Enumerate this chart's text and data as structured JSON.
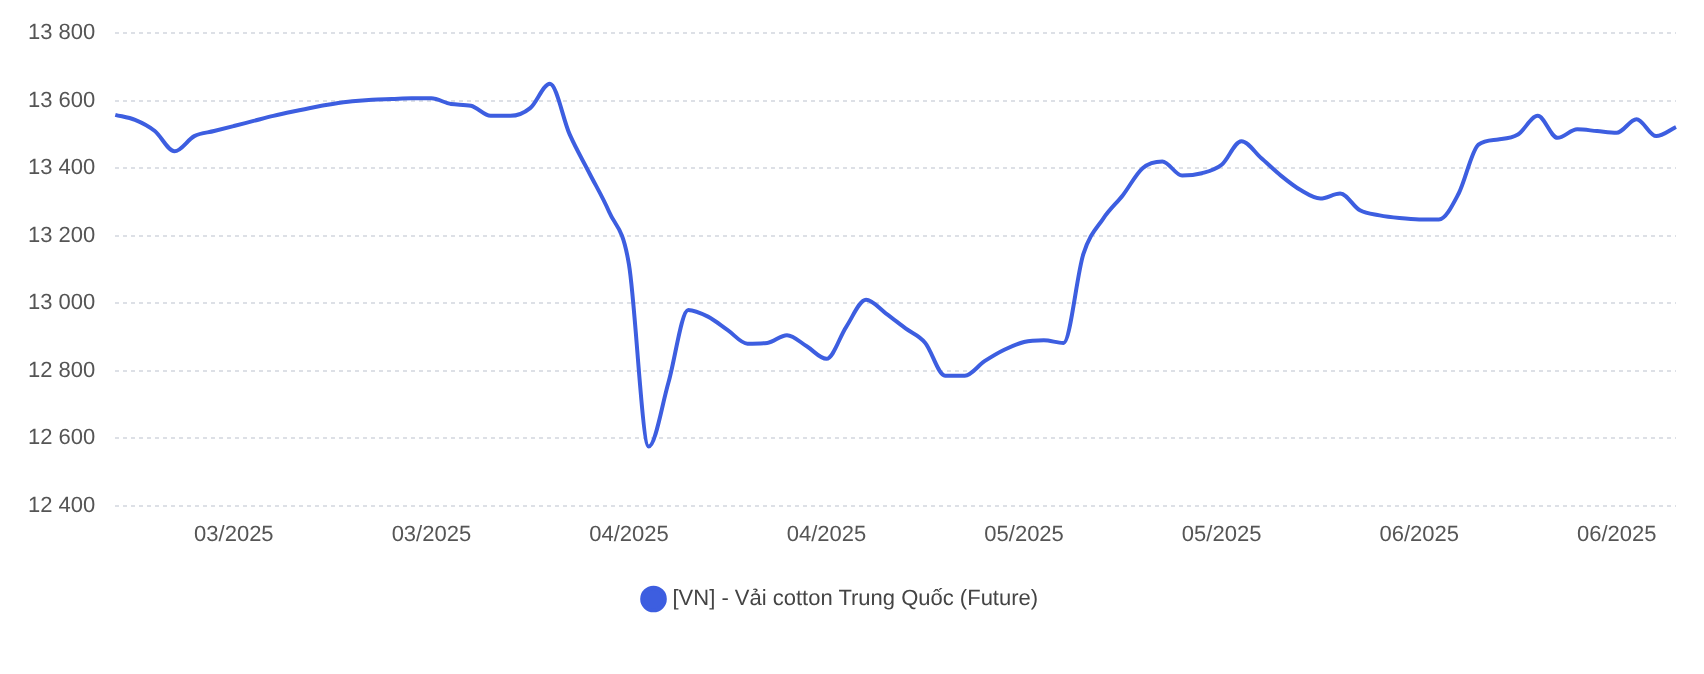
{
  "chart_data": {
    "type": "line",
    "categories": [
      null,
      null,
      null,
      null,
      null,
      null,
      "03/2025",
      null,
      null,
      null,
      null,
      null,
      null,
      null,
      null,
      null,
      "03/2025",
      null,
      null,
      null,
      null,
      null,
      null,
      null,
      null,
      null,
      "04/2025",
      null,
      null,
      null,
      null,
      null,
      null,
      null,
      null,
      null,
      "04/2025",
      null,
      null,
      null,
      null,
      null,
      null,
      null,
      null,
      null,
      "05/2025",
      null,
      null,
      null,
      null,
      null,
      null,
      null,
      null,
      null,
      "05/2025",
      null,
      null,
      null,
      null,
      null,
      null,
      null,
      null,
      null,
      "06/2025",
      null,
      null,
      null,
      null,
      null,
      null,
      null,
      null,
      null,
      "06/2025",
      null,
      null,
      null
    ],
    "series": [
      {
        "name": "[VN] - Vải cotton Trung Quốc (Future)",
        "color": "#3d5ee0",
        "values": [
          13558,
          13543,
          13510,
          13450,
          13495,
          13510,
          13525,
          13540,
          13555,
          13568,
          13580,
          13590,
          13598,
          13603,
          13605,
          13607,
          13607,
          13590,
          13585,
          13555,
          13555,
          13578,
          13650,
          13500,
          13385,
          13270,
          13115,
          12575,
          12765,
          12980,
          12960,
          12920,
          12880,
          12882,
          12905,
          12872,
          12835,
          12930,
          13010,
          12970,
          12925,
          12882,
          12785,
          12785,
          12828,
          12862,
          12885,
          12890,
          12882,
          13145,
          13250,
          13320,
          13400,
          13420,
          13378,
          13385,
          13410,
          13480,
          13430,
          13378,
          13335,
          13310,
          13325,
          13275,
          13260,
          13252,
          13248,
          13248,
          13325,
          13470,
          13485,
          13500,
          13555,
          13490,
          13515,
          13510,
          13505,
          13545,
          13495,
          13522
        ]
      }
    ],
    "ylim": [
      12400,
      13800
    ],
    "yticks": [
      {
        "value": 12400,
        "label": "12 400"
      },
      {
        "value": 12600,
        "label": "12 600"
      },
      {
        "value": 12800,
        "label": "12 800"
      },
      {
        "value": 13000,
        "label": "13 000"
      },
      {
        "value": 13200,
        "label": "13 200"
      },
      {
        "value": 13400,
        "label": "13 400"
      },
      {
        "value": 13600,
        "label": "13 600"
      },
      {
        "value": 13800,
        "label": "13 800"
      }
    ],
    "grid": "y",
    "legend": "bottom",
    "marker": "none",
    "line_style": "solid"
  }
}
